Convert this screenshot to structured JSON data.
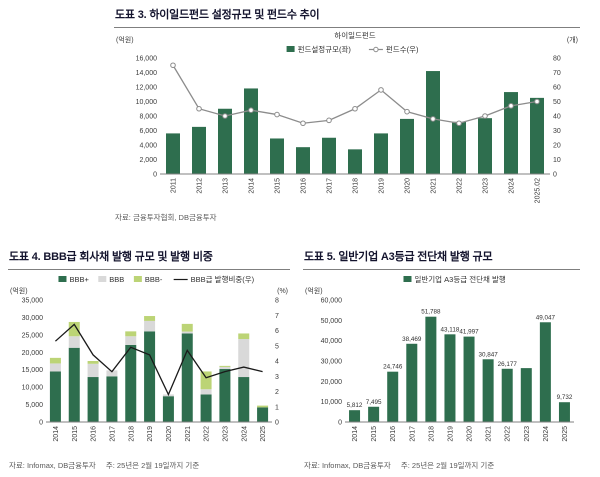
{
  "page": {
    "background": "#ffffff"
  },
  "colors": {
    "bar_green": "#2e6e4e",
    "bbb_gray": "#d9d9d9",
    "bbb_minus_green": "#bcd476",
    "fund_count_line": "#8c8c8c",
    "ratio_line": "#1a1a1a",
    "header_text": "#14142e",
    "source_text": "#595959"
  },
  "chart_data": [
    {
      "type": "bar+line",
      "name": "highyield-fund-chart",
      "header": "도표 3. 하이일드펀드 설정규모 및 펀드수 추이",
      "source": "자료: 금융투자협회, DB금융투자",
      "legend_title": "하이일드펀드",
      "unit_left": "(억원)",
      "unit_right": "(개)",
      "legend_position": "top-center",
      "grid": false,
      "categories": [
        "2011",
        "2012",
        "2013",
        "2014",
        "2015",
        "2016",
        "2017",
        "2018",
        "2019",
        "2020",
        "2021",
        "2022",
        "2023",
        "2024",
        "2025.02"
      ],
      "ylim_left": [
        0,
        16000
      ],
      "ytick_left": 2000,
      "ylim_right": [
        0,
        80
      ],
      "ytick_right": 10,
      "series": [
        {
          "name": "펀드설정규모(좌)",
          "type": "bar",
          "axis": "left",
          "color": "#2e6e4e",
          "values": [
            5600,
            6500,
            9000,
            11800,
            4900,
            3700,
            5000,
            3400,
            5600,
            7600,
            14200,
            7200,
            7700,
            11300,
            10500
          ]
        },
        {
          "name": "펀드수(우)",
          "type": "line",
          "axis": "right",
          "color": "#8c8c8c",
          "marker": true,
          "values": [
            75,
            45,
            40,
            44,
            41,
            35,
            37,
            45,
            58,
            43,
            38,
            35,
            40,
            47,
            50
          ]
        }
      ]
    },
    {
      "type": "stacked-bar+line",
      "name": "bbb-bond-chart",
      "header": "도표 4. BBB급 회사채 발행 규모 및 발행 비중",
      "source": "자료: Infomax, DB금융투자",
      "note": "주: 25년은 2월 19일까지 기준",
      "unit_left": "(억원)",
      "unit_right": "(%)",
      "legend_position": "top-center",
      "grid": false,
      "categories": [
        "2014",
        "2015",
        "2016",
        "2017",
        "2018",
        "2019",
        "2020",
        "2021",
        "2022",
        "2023",
        "2024",
        "2025"
      ],
      "ylim_left": [
        0,
        35000
      ],
      "ytick_left": 5000,
      "ylim_right": [
        0,
        8
      ],
      "ytick_right": 1,
      "series": [
        {
          "name": "BBB+",
          "type": "bar",
          "axis": "left",
          "color": "#2e6e4e",
          "values": [
            14500,
            21300,
            12900,
            13100,
            22100,
            26000,
            7400,
            25400,
            7900,
            15200,
            12900,
            4200
          ]
        },
        {
          "name": "BBB",
          "type": "bar",
          "axis": "left",
          "color": "#d9d9d9",
          "values": [
            2300,
            3300,
            3800,
            1700,
            2500,
            3000,
            500,
            550,
            1500,
            600,
            10900,
            0
          ]
        },
        {
          "name": "BBB-",
          "type": "bar",
          "axis": "left",
          "color": "#bcd476",
          "values": [
            1600,
            4100,
            800,
            0,
            1400,
            1400,
            0,
            2200,
            5100,
            300,
            1600,
            500
          ]
        },
        {
          "name": "BBB급 발행비중(우)",
          "type": "line",
          "axis": "right",
          "color": "#1a1a1a",
          "marker": false,
          "values": [
            5.3,
            6.4,
            4.4,
            3.3,
            4.9,
            4.4,
            1.8,
            4.7,
            2.9,
            3.3,
            3.6,
            3.3
          ]
        }
      ]
    },
    {
      "type": "bar",
      "name": "a3-stb-chart",
      "header": "도표 5. 일반기업 A3등급 전단채 발행 규모",
      "source": "자료: Infomax, DB금융투자",
      "note": "주: 25년은 2월 19일까지 기준",
      "unit_left": "(억원)",
      "legend_position": "top-center",
      "grid": false,
      "categories": [
        "2014",
        "2015",
        "2016",
        "2017",
        "2018",
        "2019",
        "2020",
        "2021",
        "2022",
        "2023",
        "2024",
        "2025"
      ],
      "ylim_left": [
        0,
        60000
      ],
      "ytick_left": 10000,
      "series": [
        {
          "name": "일반기업 A3등급 전단채 발행",
          "type": "bar",
          "axis": "left",
          "color": "#2e6e4e",
          "values": [
            5812,
            7495,
            24746,
            38469,
            51788,
            43118,
            41997,
            30847,
            26177,
            26500,
            49047,
            9732
          ],
          "labels": [
            "5,812",
            "7,495",
            "24,746",
            "38,469",
            "51,788",
            "43,118",
            "41,997",
            "30,847",
            "26,177",
            "",
            "49,047",
            "9,732"
          ]
        }
      ]
    }
  ]
}
